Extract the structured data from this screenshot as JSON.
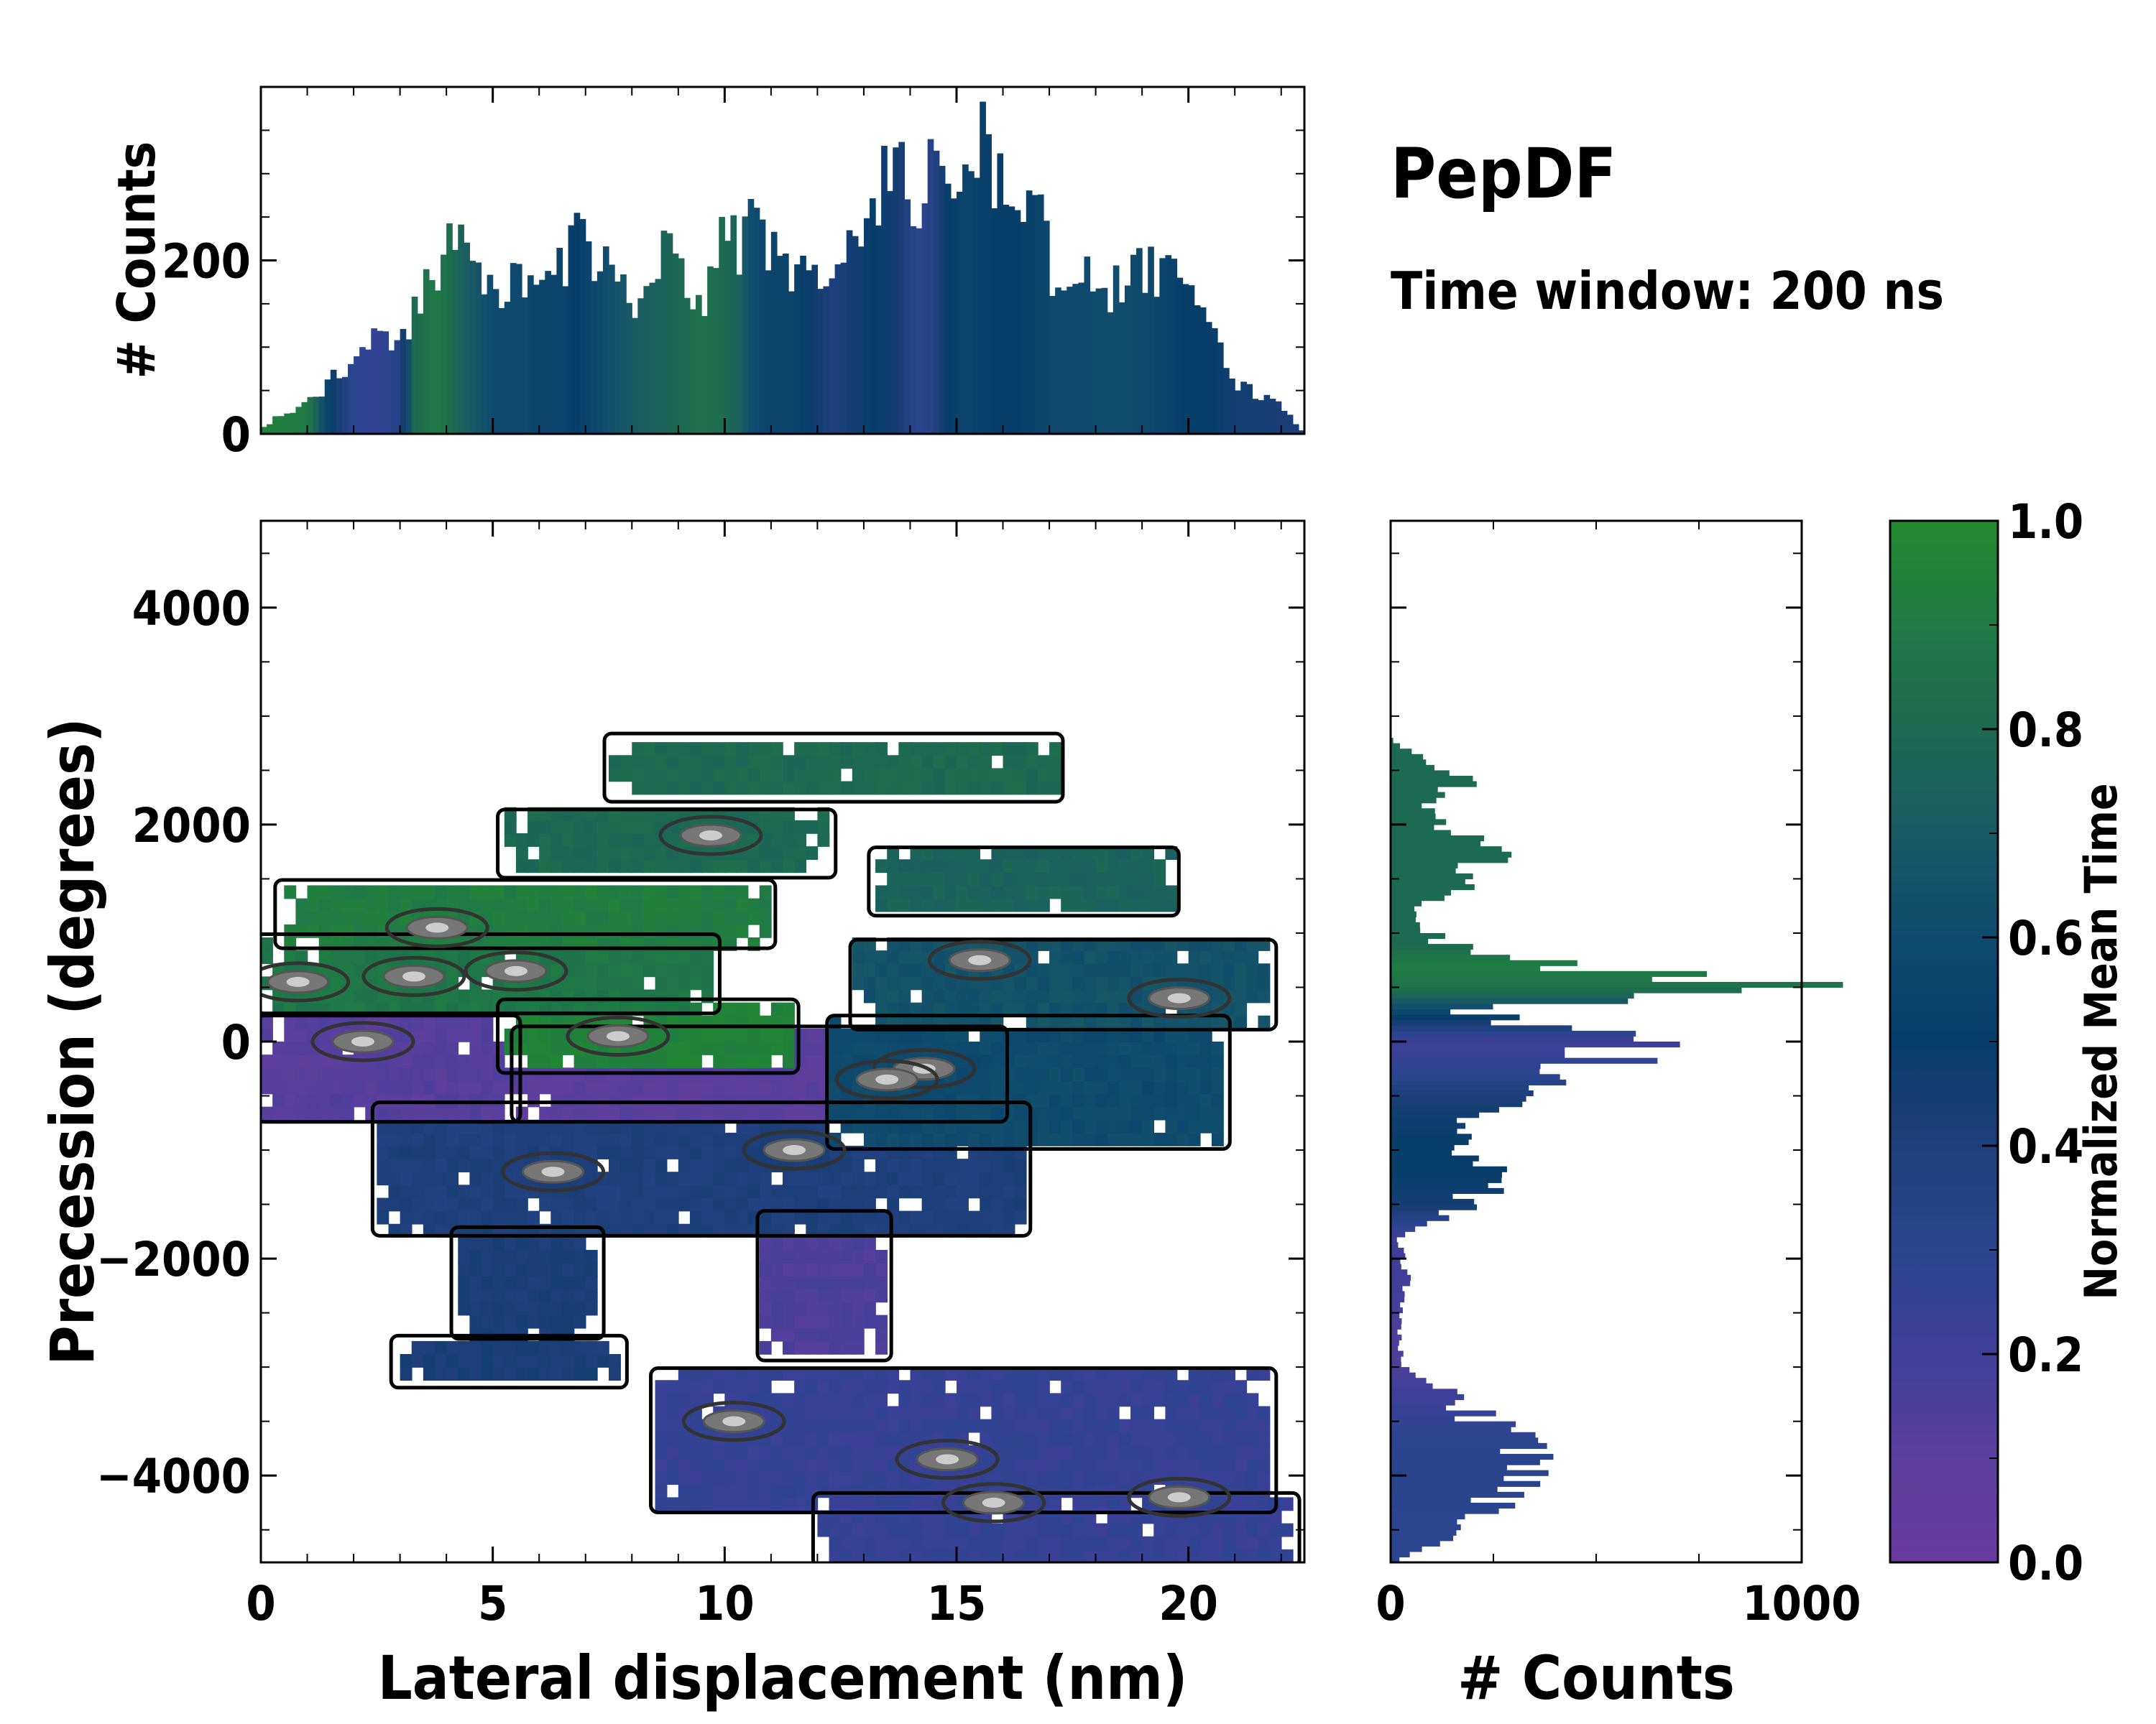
{
  "colors": {
    "colormap": [
      "#6a3aa0",
      "#5c3f9e",
      "#3f3f99",
      "#2b4590",
      "#1e3f7a",
      "#083e6a",
      "#0f4a6e",
      "#1a5a64",
      "#1d6a52",
      "#1f7a45",
      "#238b2f"
    ],
    "contour_outer": "#000000",
    "contour_inner": "#333333",
    "contour_core": "#cccccc"
  },
  "chart_data": [
    {
      "id": "top-histogram",
      "type": "bar",
      "title": "",
      "xlabel": "",
      "ylabel": "# Counts",
      "xlim": [
        0,
        22.5
      ],
      "ylim": [
        0,
        400
      ],
      "yticks": [
        {
          "v": 0,
          "label": "0"
        },
        {
          "v": 200,
          "label": "200"
        }
      ],
      "bin_width": 0.125,
      "anchors_x": [
        0,
        0.5,
        1,
        1.5,
        2,
        2.5,
        3,
        3.3,
        3.8,
        4.3,
        5,
        5.5,
        6,
        6.5,
        6.8,
        7.3,
        8,
        8.6,
        9.1,
        9.5,
        10,
        10.3,
        10.6,
        11,
        11.5,
        12,
        12.3,
        12.8,
        13.2,
        13.7,
        14.2,
        14.5,
        14.8,
        15.2,
        15.5,
        15.8,
        16.3,
        16.8,
        17.2,
        17.8,
        18.3,
        19,
        19.5,
        20,
        20.5,
        21,
        21.5,
        22,
        22.5
      ],
      "anchors_y": [
        5,
        25,
        35,
        60,
        90,
        120,
        100,
        140,
        200,
        220,
        160,
        175,
        170,
        185,
        225,
        200,
        155,
        205,
        185,
        140,
        230,
        220,
        270,
        200,
        190,
        195,
        180,
        220,
        290,
        300,
        260,
        310,
        320,
        290,
        350,
        300,
        280,
        250,
        160,
        200,
        170,
        190,
        180,
        160,
        110,
        60,
        45,
        30,
        0
      ],
      "anchors_c": [
        0.95,
        0.92,
        0.9,
        0.5,
        0.3,
        0.25,
        0.35,
        0.8,
        0.9,
        0.75,
        0.6,
        0.6,
        0.55,
        0.55,
        0.5,
        0.6,
        0.7,
        0.75,
        0.8,
        0.85,
        0.8,
        0.75,
        0.6,
        0.55,
        0.55,
        0.45,
        0.4,
        0.45,
        0.5,
        0.45,
        0.3,
        0.35,
        0.5,
        0.55,
        0.52,
        0.5,
        0.5,
        0.55,
        0.6,
        0.6,
        0.62,
        0.6,
        0.55,
        0.5,
        0.5,
        0.45,
        0.45,
        0.42,
        0.42
      ]
    },
    {
      "id": "main-2d-histogram",
      "type": "heatmap",
      "xlabel": "Lateral displacement (nm)",
      "ylabel": "Precession (degrees)",
      "xlim": [
        0,
        22.5
      ],
      "ylim": [
        -4800,
        4800
      ],
      "xticks": [
        {
          "v": 0,
          "label": "0"
        },
        {
          "v": 5,
          "label": "5"
        },
        {
          "v": 10,
          "label": "10"
        },
        {
          "v": 15,
          "label": "15"
        },
        {
          "v": 20,
          "label": "20"
        }
      ],
      "yticks": [
        {
          "v": -4000,
          "label": "−4000"
        },
        {
          "v": -2000,
          "label": "−2000"
        },
        {
          "v": 0,
          "label": "0"
        },
        {
          "v": 2000,
          "label": "2000"
        },
        {
          "v": 4000,
          "label": "4000"
        }
      ],
      "regions": [
        {
          "name": "upper-green-strip",
          "xmin": 7.5,
          "xmax": 17.2,
          "ymin": 2250,
          "ymax": 2800,
          "c": 0.8
        },
        {
          "name": "upper-green-blob",
          "xmin": 5.2,
          "xmax": 12.3,
          "ymin": 1550,
          "ymax": 2100,
          "c": 0.8
        },
        {
          "name": "upper-right-teal",
          "xmin": 13.2,
          "xmax": 19.7,
          "ymin": 1200,
          "ymax": 1750,
          "c": 0.75
        },
        {
          "name": "left-green-band",
          "xmin": 0.4,
          "xmax": 11,
          "ymin": 900,
          "ymax": 1450,
          "c": 0.92
        },
        {
          "name": "left-green-lower",
          "xmin": 0,
          "xmax": 9.8,
          "ymin": 300,
          "ymax": 950,
          "c": 0.88
        },
        {
          "name": "center-green",
          "xmin": 5.2,
          "xmax": 11.5,
          "ymin": -250,
          "ymax": 350,
          "c": 0.95
        },
        {
          "name": "right-teal-band",
          "xmin": 12.8,
          "xmax": 21.8,
          "ymin": 150,
          "ymax": 900,
          "c": 0.65
        },
        {
          "name": "right-teal-lower",
          "xmin": 12.3,
          "xmax": 20.8,
          "ymin": -950,
          "ymax": 200,
          "c": 0.6
        },
        {
          "name": "left-purple",
          "xmin": 0,
          "xmax": 5.5,
          "ymin": -700,
          "ymax": 200,
          "c": 0.12
        },
        {
          "name": "center-purple",
          "xmin": 5.5,
          "xmax": 16,
          "ymin": -700,
          "ymax": 100,
          "c": 0.1
        },
        {
          "name": "mid-blue-band",
          "xmin": 2.5,
          "xmax": 16.5,
          "ymin": -1750,
          "ymax": -600,
          "c": 0.4
        },
        {
          "name": "lower-left-blue",
          "xmin": 4.2,
          "xmax": 7.3,
          "ymin": -2700,
          "ymax": -1750,
          "c": 0.42
        },
        {
          "name": "lower-purple-stem",
          "xmin": 10.8,
          "xmax": 13.5,
          "ymin": -2900,
          "ymax": -1600,
          "c": 0.15
        },
        {
          "name": "far-lower-blue",
          "xmin": 2.9,
          "xmax": 7.8,
          "ymin": -3150,
          "ymax": -2750,
          "c": 0.42
        },
        {
          "name": "bottom-purple",
          "xmin": 8.5,
          "xmax": 21.8,
          "ymin": -4300,
          "ymax": -3050,
          "c": 0.25
        },
        {
          "name": "bottom-purple-tail",
          "xmin": 12,
          "xmax": 22.3,
          "ymin": -4800,
          "ymax": -4200,
          "c": 0.25
        }
      ],
      "hotspots": [
        {
          "x": 3.8,
          "y": 1050
        },
        {
          "x": 3.3,
          "y": 600
        },
        {
          "x": 5.5,
          "y": 650
        },
        {
          "x": 0.8,
          "y": 550
        },
        {
          "x": 2.2,
          "y": 0
        },
        {
          "x": 7.7,
          "y": 50
        },
        {
          "x": 9.7,
          "y": 1900
        },
        {
          "x": 15.5,
          "y": 750
        },
        {
          "x": 19.8,
          "y": 400
        },
        {
          "x": 14.3,
          "y": -250
        },
        {
          "x": 13.5,
          "y": -350
        },
        {
          "x": 10.2,
          "y": -3500
        },
        {
          "x": 14.8,
          "y": -3850
        },
        {
          "x": 15.8,
          "y": -4250
        },
        {
          "x": 19.8,
          "y": -4200
        },
        {
          "x": 6.3,
          "y": -1200
        },
        {
          "x": 11.5,
          "y": -1000
        }
      ]
    },
    {
      "id": "right-histogram",
      "type": "bar",
      "orientation": "horizontal",
      "xlabel": "# Counts",
      "ylabel": "",
      "xlim": [
        0,
        1000
      ],
      "ylim": [
        -4800,
        4800
      ],
      "xticks": [
        {
          "v": 0,
          "label": "0"
        },
        {
          "v": 1000,
          "label": "1000"
        }
      ],
      "bin_width": 50,
      "anchors_y": [
        -4800,
        -4700,
        -4400,
        -4000,
        -3700,
        -3200,
        -3000,
        -2700,
        -2200,
        -1800,
        -1500,
        -1200,
        -900,
        -600,
        -300,
        0,
        300,
        500,
        700,
        900,
        1200,
        1500,
        1800,
        2100,
        2400,
        2700,
        2800
      ],
      "anchors_v": [
        0,
        80,
        200,
        320,
        300,
        120,
        30,
        20,
        40,
        20,
        200,
        260,
        150,
        230,
        450,
        600,
        160,
        920,
        420,
        120,
        60,
        200,
        250,
        80,
        180,
        30,
        0
      ],
      "anchors_c": [
        0.3,
        0.3,
        0.3,
        0.32,
        0.3,
        0.2,
        0.15,
        0.15,
        0.2,
        0.2,
        0.45,
        0.5,
        0.5,
        0.45,
        0.3,
        0.2,
        0.6,
        0.85,
        0.92,
        0.8,
        0.8,
        0.8,
        0.8,
        0.8,
        0.8,
        0.8,
        0.8
      ]
    },
    {
      "id": "colorbar",
      "type": "colorbar",
      "label": "Normalized Mean Time",
      "range": [
        0,
        1
      ],
      "ticks": [
        {
          "v": 0,
          "label": "0.0"
        },
        {
          "v": 0.2,
          "label": "0.2"
        },
        {
          "v": 0.4,
          "label": "0.4"
        },
        {
          "v": 0.6,
          "label": "0.6"
        },
        {
          "v": 0.8,
          "label": "0.8"
        },
        {
          "v": 1,
          "label": "1.0"
        }
      ]
    }
  ],
  "title": "PepDF",
  "subtitle": "Time window: 200 ns"
}
